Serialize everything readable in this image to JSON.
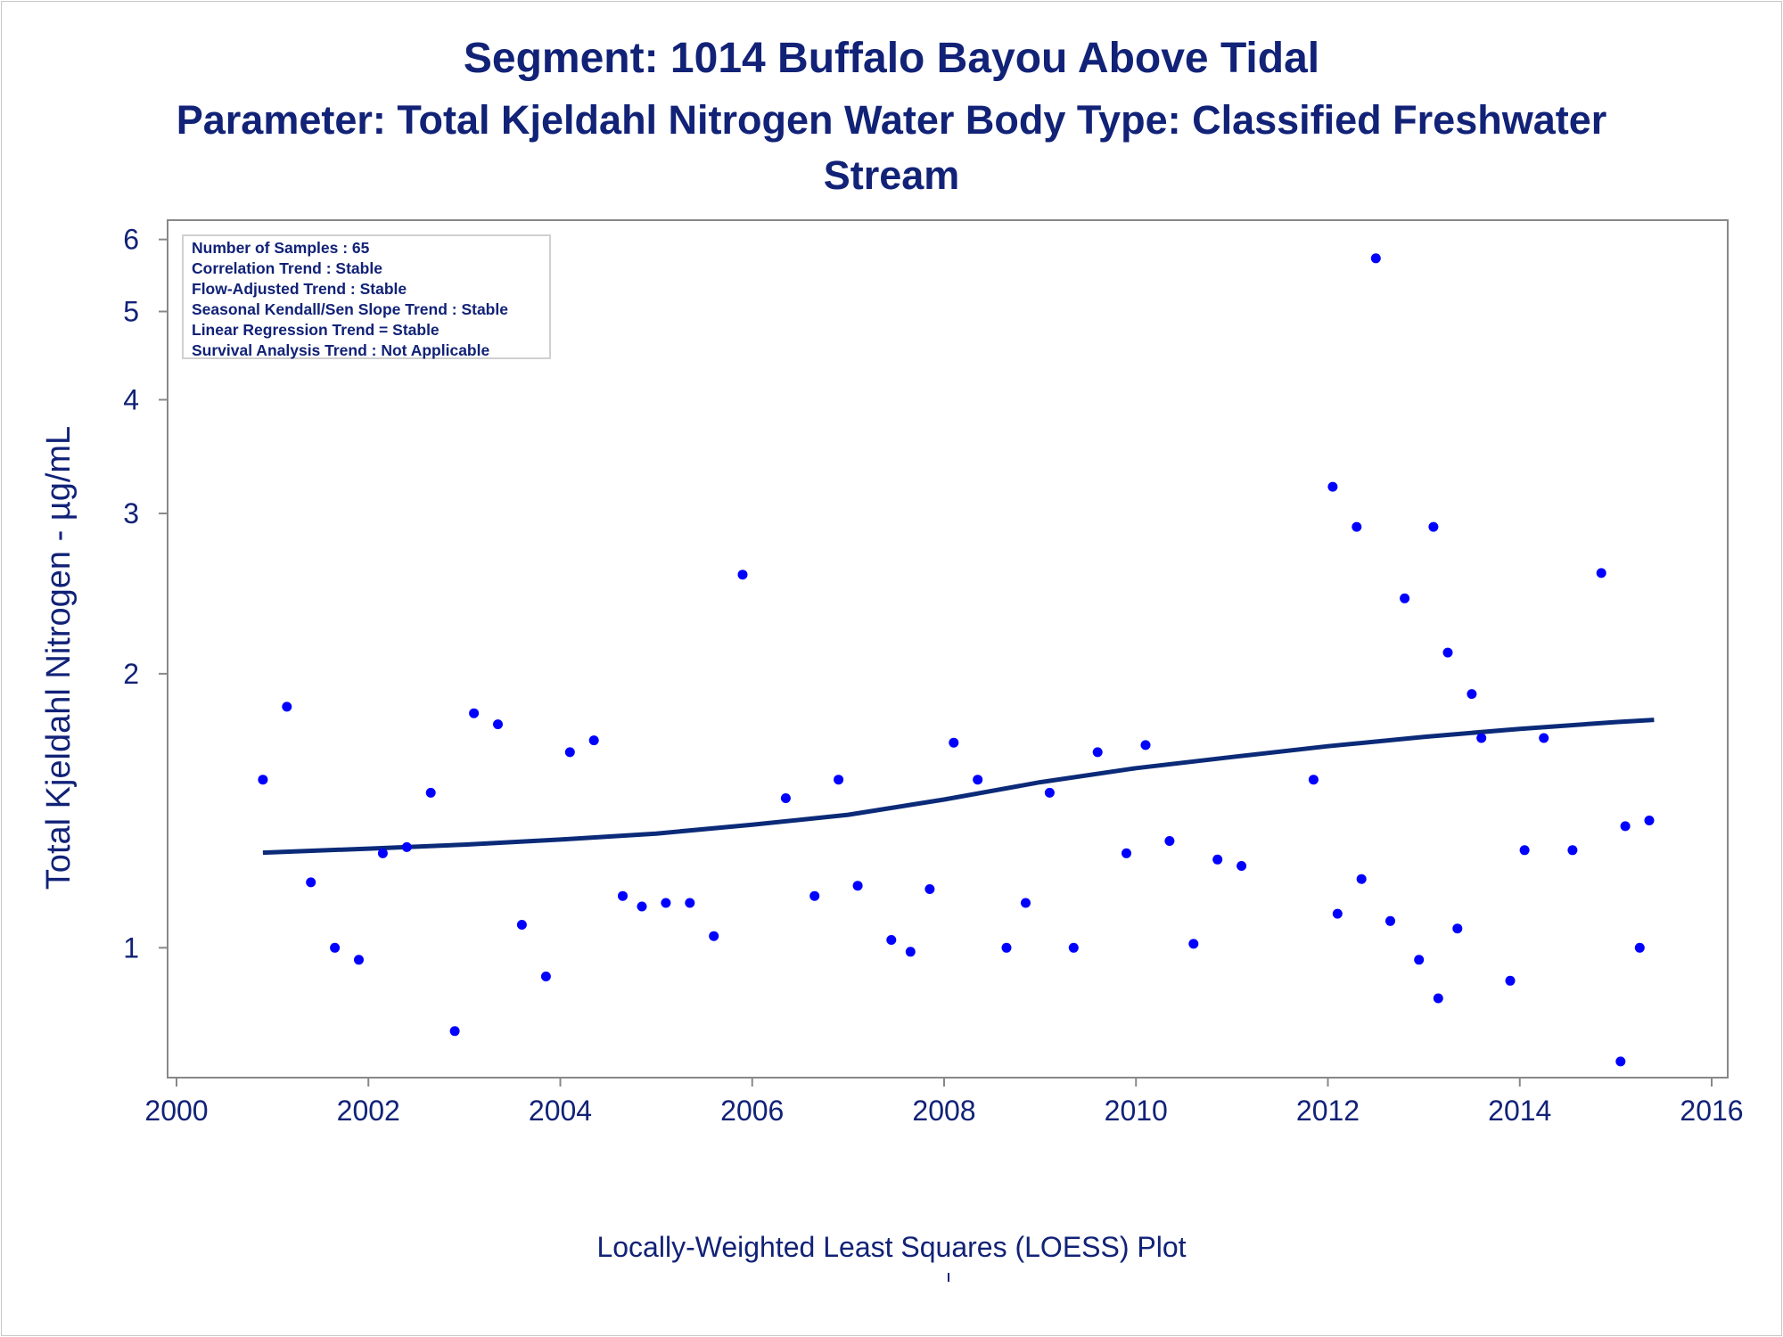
{
  "title": "Segment: 1014  Buffalo Bayou Above Tidal",
  "subtitle": "Parameter: Total Kjeldahl Nitrogen   Water Body Type: Classified Freshwater Stream",
  "footnote": "Locally-Weighted Least Squares (LOESS) Plot",
  "stats": [
    "Number of Samples : 65",
    "Correlation Trend : Stable",
    "Flow-Adjusted Trend : Stable",
    "Seasonal Kendall/Sen Slope Trend : Stable",
    "Linear Regression Trend = Stable",
    "Survival Analysis Trend : Not Applicable"
  ],
  "colors": {
    "text": "#112277",
    "points": "#0000ff",
    "loess": "#0b2a78",
    "axis": "#888888"
  },
  "chart_data": {
    "type": "scatter",
    "xlabel": "",
    "ylabel": "Total Kjeldahl Nitrogen -  µg/mL",
    "xlim": [
      2000,
      2016
    ],
    "ylim": [
      0.72,
      6.3
    ],
    "yscale": "log",
    "xticks": [
      2000,
      2002,
      2004,
      2006,
      2008,
      2010,
      2012,
      2014,
      2016
    ],
    "yticks": [
      1,
      2,
      3,
      4,
      5,
      6
    ],
    "grid": false,
    "points": [
      [
        2000.9,
        1.53
      ],
      [
        2001.15,
        1.84
      ],
      [
        2001.4,
        1.18
      ],
      [
        2001.65,
        1.0
      ],
      [
        2001.9,
        0.97
      ],
      [
        2002.15,
        1.27
      ],
      [
        2002.4,
        1.29
      ],
      [
        2002.65,
        1.48
      ],
      [
        2002.9,
        0.81
      ],
      [
        2003.1,
        1.81
      ],
      [
        2003.35,
        1.76
      ],
      [
        2003.6,
        1.06
      ],
      [
        2003.85,
        0.93
      ],
      [
        2004.1,
        1.64
      ],
      [
        2004.35,
        1.69
      ],
      [
        2004.65,
        1.14
      ],
      [
        2004.85,
        1.11
      ],
      [
        2005.1,
        1.12
      ],
      [
        2005.35,
        1.12
      ],
      [
        2005.6,
        1.03
      ],
      [
        2005.9,
        2.57
      ],
      [
        2006.35,
        1.46
      ],
      [
        2006.65,
        1.14
      ],
      [
        2006.9,
        1.53
      ],
      [
        2007.1,
        1.17
      ],
      [
        2007.45,
        1.02
      ],
      [
        2007.65,
        0.99
      ],
      [
        2007.85,
        1.16
      ],
      [
        2008.1,
        1.68
      ],
      [
        2008.35,
        1.53
      ],
      [
        2008.65,
        1.0
      ],
      [
        2008.85,
        1.12
      ],
      [
        2009.1,
        1.48
      ],
      [
        2009.35,
        1.0
      ],
      [
        2009.6,
        1.64
      ],
      [
        2009.9,
        1.27
      ],
      [
        2010.1,
        1.67
      ],
      [
        2010.35,
        1.31
      ],
      [
        2010.6,
        1.01
      ],
      [
        2010.85,
        1.25
      ],
      [
        2011.1,
        1.23
      ],
      [
        2011.85,
        1.53
      ],
      [
        2012.05,
        3.21
      ],
      [
        2012.1,
        1.09
      ],
      [
        2012.3,
        2.9
      ],
      [
        2012.35,
        1.19
      ],
      [
        2012.5,
        5.72
      ],
      [
        2012.65,
        1.07
      ],
      [
        2012.8,
        2.42
      ],
      [
        2012.95,
        0.97
      ],
      [
        2013.1,
        2.9
      ],
      [
        2013.15,
        0.88
      ],
      [
        2013.25,
        2.11
      ],
      [
        2013.35,
        1.05
      ],
      [
        2013.5,
        1.9
      ],
      [
        2013.6,
        1.7
      ],
      [
        2013.9,
        0.92
      ],
      [
        2014.05,
        1.28
      ],
      [
        2014.25,
        1.7
      ],
      [
        2014.55,
        1.28
      ],
      [
        2014.85,
        2.58
      ],
      [
        2015.05,
        0.75
      ],
      [
        2015.1,
        1.36
      ],
      [
        2015.25,
        1.0
      ],
      [
        2015.35,
        1.38
      ]
    ],
    "loess": [
      [
        2000.9,
        1.272
      ],
      [
        2002,
        1.285
      ],
      [
        2003,
        1.298
      ],
      [
        2004,
        1.315
      ],
      [
        2005,
        1.335
      ],
      [
        2006,
        1.365
      ],
      [
        2007,
        1.4
      ],
      [
        2008,
        1.455
      ],
      [
        2009,
        1.52
      ],
      [
        2010,
        1.575
      ],
      [
        2011,
        1.62
      ],
      [
        2012,
        1.665
      ],
      [
        2013,
        1.705
      ],
      [
        2014,
        1.74
      ],
      [
        2015,
        1.77
      ],
      [
        2015.4,
        1.78
      ]
    ]
  }
}
